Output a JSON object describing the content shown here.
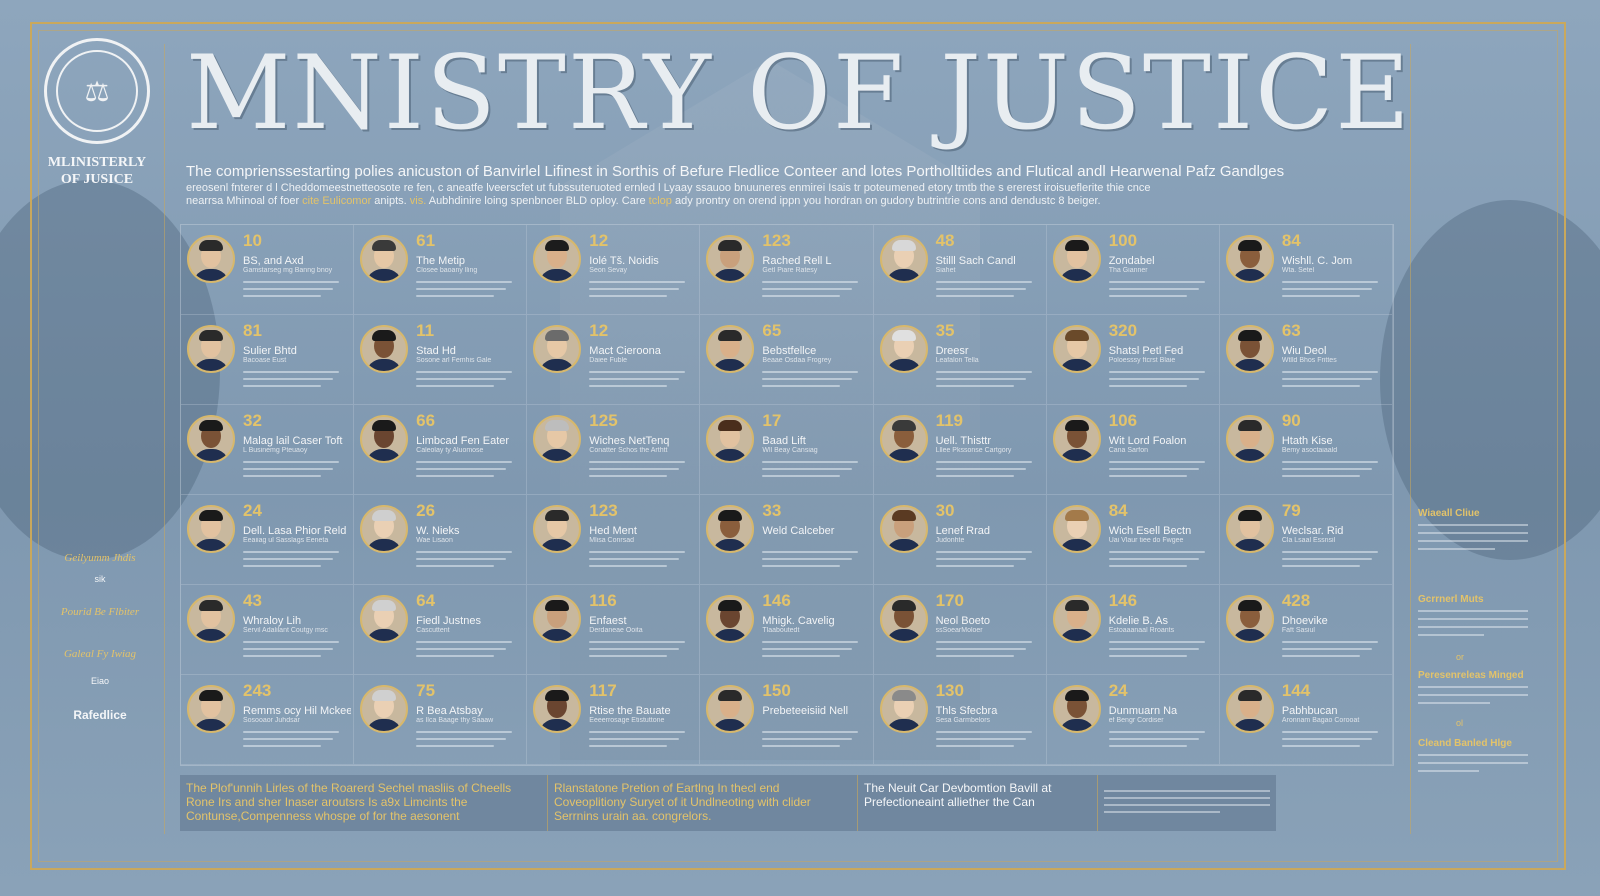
{
  "title": "MNISTRY OF JUSTICE",
  "seal": {
    "wordmark": "MLINISTERLY\nOF JUSICE",
    "icon": "crest-icon"
  },
  "intro": {
    "main": "The comprienssestarting polies anicuston of Banvirlel Lifinest in Sorthis of Befure Fledlice Conteer and lotes Portholltiides and Flutical andl Hearwenal Pafz Gandlges",
    "line2": "ereosenl fnterer d l Cheddomeestnetteosote re fen, c aneatfe lveerscfet ut fubssuteruoted ernled l Lyaay ssauoo bnuuneres enmirei Isais tr poteumened etory tmtb the s ererest iroisueflerite thie cnce",
    "line3_a": "nearrsa Mhinoal of foer ",
    "line3_hl1": "cite Eulicomor",
    "line3_b": " anipts. ",
    "line3_hl2": "vis.",
    "line3_c": " Aubhdinire loing spenbnoer BLD oploy. Care ",
    "line3_hl3": "tclop",
    "line3_d": " ady prontry on orend ippn you hordran on gudory butrintrie cons and dendustc 8 beiger."
  },
  "officials": [
    {
      "num": "10",
      "name": "BS, and Axd",
      "role": "Gamstarseg mg Banng bnoy",
      "hair": "#2a2a2a",
      "skin": "#e2c2a0"
    },
    {
      "num": "61",
      "name": "The Metip",
      "role": "Closee baoany lling",
      "hair": "#3a3a3a",
      "skin": "#e6c8a6"
    },
    {
      "num": "12",
      "name": "Iolé Tš. Noidis",
      "role": "Seon Sevay",
      "hair": "#1c1c1c",
      "skin": "#d9b08a"
    },
    {
      "num": "123",
      "name": "Rached Rell L",
      "role": "Getl Piare Ratesy",
      "hair": "#2a2a2a",
      "skin": "#c9a07c"
    },
    {
      "num": "48",
      "name": "Stilll Sach Candl",
      "role": "Siahet",
      "hair": "#d8d8d8",
      "skin": "#ead0b4"
    },
    {
      "num": "100",
      "name": "Zondabel",
      "role": "Tha Gianner",
      "hair": "#1a1a1a",
      "skin": "#e2c2a0"
    },
    {
      "num": "84",
      "name": "Wishll. C. Jom",
      "role": "Wta. Setel",
      "hair": "#1a1a1a",
      "skin": "#8a5e3c"
    },
    {
      "num": "81",
      "name": "Sulier Bhtd",
      "role": "Bacoase Eust",
      "hair": "#2a2a2a",
      "skin": "#e2c2a0"
    },
    {
      "num": "11",
      "name": "Stad Hd",
      "role": "Sosone arl Femhis Gale",
      "hair": "#1a1a1a",
      "skin": "#7a5236"
    },
    {
      "num": "12",
      "name": "Mact Cieroona",
      "role": "Daiee Fuble",
      "hair": "#6b6b6b",
      "skin": "#e6c8a6"
    },
    {
      "num": "65",
      "name": "Bebstfellce",
      "role": "Beaae Osdaa Frogrey",
      "hair": "#2a2a2a",
      "skin": "#d9b08a"
    },
    {
      "num": "35",
      "name": "Dreesr",
      "role": "Leafalon Tella",
      "hair": "#e0e0e0",
      "skin": "#ead0b4"
    },
    {
      "num": "320",
      "name": "Shatsl Petl Fed",
      "role": "Poloesssy ftcrst Blaie",
      "hair": "#6a4a2a",
      "skin": "#e6c8a6"
    },
    {
      "num": "63",
      "name": "Wiu Deol",
      "role": "Wtlld Bhos Frittes",
      "hair": "#1a1a1a",
      "skin": "#7a5236"
    },
    {
      "num": "32",
      "name": "Malag lail Caser Toft",
      "role": "L Businemg Pteuaoy",
      "hair": "#1a1a1a",
      "skin": "#7a5236"
    },
    {
      "num": "66",
      "name": "Limbcad Fen Eater",
      "role": "Caleolay ty Aluomose",
      "hair": "#1a1a1a",
      "skin": "#6a4530"
    },
    {
      "num": "125",
      "name": "Wiches NetTenq",
      "role": "Conatter Schos the Arthtt",
      "hair": "#bdbdbd",
      "skin": "#e6c8a6"
    },
    {
      "num": "17",
      "name": "Baad Lift",
      "role": "Wll Beay Cansiag",
      "hair": "#4a2e1c",
      "skin": "#e2c2a0"
    },
    {
      "num": "119",
      "name": "Uell. Thisttr",
      "role": "Lllee Pkssonse Cartgory",
      "hair": "#3a3a3a",
      "skin": "#8a5e3c"
    },
    {
      "num": "106",
      "name": "Wit Lord Foalon",
      "role": "Cana Sarfon",
      "hair": "#1a1a1a",
      "skin": "#7a5236"
    },
    {
      "num": "90",
      "name": "Htath Kise",
      "role": "Bemy asoctaiaald",
      "hair": "#2a2a2a",
      "skin": "#d9b08a"
    },
    {
      "num": "24",
      "name": "Dell. Lasa Phior Reld",
      "role": "Eeaiiag ul Sasslags Eeneta",
      "hair": "#1a1a1a",
      "skin": "#e2c2a0"
    },
    {
      "num": "26",
      "name": "W. Nieks",
      "role": "Wae Lisaon",
      "hair": "#cfcfcf",
      "skin": "#ead0b4"
    },
    {
      "num": "123",
      "name": "Hed Ment",
      "role": "Mlisa Conrsad",
      "hair": "#2a2a2a",
      "skin": "#e6c8a6"
    },
    {
      "num": "33",
      "name": "Weld Calceber",
      "role": "",
      "hair": "#1a1a1a",
      "skin": "#8a5e3c"
    },
    {
      "num": "30",
      "name": "Lenef Rrad",
      "role": "Judonhte",
      "hair": "#5a3a22",
      "skin": "#c9a07c"
    },
    {
      "num": "84",
      "name": "Wich Esell Bectn",
      "role": "Uai Vlaur tiee do Fwgee",
      "hair": "#a37a4a",
      "skin": "#ead0b4"
    },
    {
      "num": "79",
      "name": "Weclsar. Rid",
      "role": "Cla Lsaal Essnsil",
      "hair": "#1a1a1a",
      "skin": "#e2c2a0"
    },
    {
      "num": "43",
      "name": "Whraloy Lih",
      "role": "Servil Adalilant Coutgy msc",
      "hair": "#2a2a2a",
      "skin": "#e2c2a0"
    },
    {
      "num": "64",
      "name": "Fiedl Justnes",
      "role": "Cascuttent",
      "hair": "#d0d0d0",
      "skin": "#ead0b4"
    },
    {
      "num": "116",
      "name": "Enfaest",
      "role": "Derdaneae Ooita",
      "hair": "#1a1a1a",
      "skin": "#c9a07c"
    },
    {
      "num": "146",
      "name": "Mhigk. Cavelig",
      "role": "Tlaaboutedt",
      "hair": "#1a1a1a",
      "skin": "#6a4530"
    },
    {
      "num": "170",
      "name": "Neol Boeto",
      "role": "ssSoearMoloer",
      "hair": "#2a2a2a",
      "skin": "#7a5236"
    },
    {
      "num": "146",
      "name": "Kdelie B. As",
      "role": "Estoaaanaal Rroants",
      "hair": "#2a2a2a",
      "skin": "#d9b08a"
    },
    {
      "num": "428",
      "name": "Dhoevike",
      "role": "Faft Sasiul",
      "hair": "#1a1a1a",
      "skin": "#8a5e3c"
    },
    {
      "num": "243",
      "name": "Remms ocy Hil Mckeer",
      "role": "Sosooaor Juhdsar",
      "hair": "#1a1a1a",
      "skin": "#e2c2a0"
    },
    {
      "num": "75",
      "name": "R Bea Atsbay",
      "role": "as Ilca Baage thy Saaaw",
      "hair": "#d0d0d0",
      "skin": "#ead0b4"
    },
    {
      "num": "117",
      "name": "Rtise the Bauate",
      "role": "Eeeerrosage Etistuttone",
      "hair": "#1a1a1a",
      "skin": "#6a4530"
    },
    {
      "num": "150",
      "name": "Prebeteeisiid Nell",
      "role": "",
      "hair": "#2a2a2a",
      "skin": "#d9b08a"
    },
    {
      "num": "130",
      "name": "Thls Sfecbra",
      "role": "Sesa Garmbelors",
      "hair": "#8a8a8a",
      "skin": "#ead0b4"
    },
    {
      "num": "24",
      "name": "Dunmuarn Na",
      "role": "ef Bengr Cordiser",
      "hair": "#1a1a1a",
      "skin": "#7a5236"
    },
    {
      "num": "144",
      "name": "Pabhbucan",
      "role": "Aronnam Bagao Corooat",
      "hair": "#2a2a2a",
      "skin": "#d9b08a"
    }
  ],
  "left_panel": {
    "note1": "Geilyumm Jhdis",
    "note1_sub": "sik",
    "note2": "Pourid Be Flbiter",
    "note3": "Galeal Fy Iwiag",
    "note3_sub": "Eiao",
    "note4": "Rafedlice"
  },
  "right_panel": {
    "h1": "Wiaeall Cliue",
    "h2": "Gcrrnerl Muts",
    "or1": "or",
    "h3": "Peresenreleas Minged",
    "or2": "ol",
    "h4": "Cleand Banled Hlge"
  },
  "footer": {
    "col1": "The Plof'unnih Lirles of the Roarerd Sechel masliis of Cheells\nRone Irs and sher Inaser aroutsrs Is a9x Limcints the\nContunse,Compenness whospe of for the aesonent",
    "col2": "Rlanstatone Pretion of Eartlng In thecl end\nCoveoplitiony Suryet of it Undlneoting with clider\nSerrnins urain aa. congrelors.",
    "col3": "The Neuit Car Devbomtion Bavill at\nPrefectioneaint alliether the Can"
  },
  "colors": {
    "accent_gold": "#e3c36a",
    "background": "#8ea6bd",
    "frame": "#c9a85c"
  }
}
